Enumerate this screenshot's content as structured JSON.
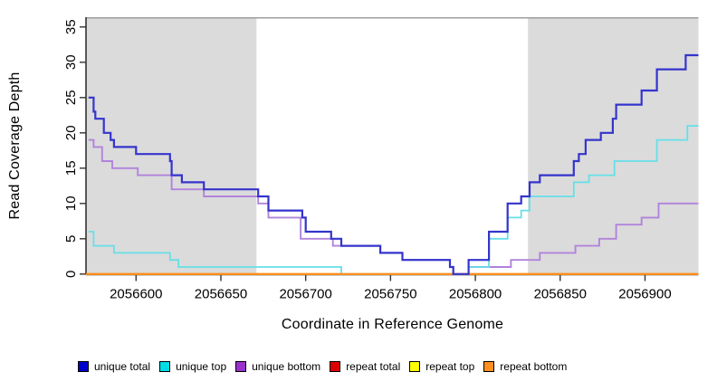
{
  "chart_data": {
    "type": "line",
    "subtype": "step-after",
    "title": "",
    "xlabel": "Coordinate in Reference Genome",
    "ylabel": "Read Coverage Depth",
    "xlim": [
      2056570.5,
      2056931.5
    ],
    "ylim": [
      0,
      36.5
    ],
    "x_ticks": [
      2056600,
      2056650,
      2056700,
      2056750,
      2056800,
      2056850,
      2056900
    ],
    "y_ticks": [
      0,
      5,
      10,
      15,
      20,
      25,
      30,
      35
    ],
    "grid": false,
    "plot_background": "#ffffff",
    "shaded_regions": {
      "color": "#DBDBDB",
      "regions": [
        [
          2056570.5,
          2056671
        ],
        [
          2056831,
          2056931.5
        ]
      ]
    },
    "axis_color": "#333333",
    "top_border_color": "#9E9E9E",
    "legend": {
      "position": "bottom",
      "items": [
        {
          "label": "unique total",
          "swatch": "#0000CC"
        },
        {
          "label": "unique top",
          "swatch": "#00DDE6"
        },
        {
          "label": "unique bottom",
          "swatch": "#9932CC"
        },
        {
          "label": "repeat total",
          "swatch": "#DD0000"
        },
        {
          "label": "repeat top",
          "swatch": "#FFFF00"
        },
        {
          "label": "repeat bottom",
          "swatch": "#FF9020"
        }
      ]
    },
    "series": [
      {
        "name": "unique total",
        "color": "#3434CD",
        "line_width": 2.2,
        "points": [
          [
            2056572,
            25
          ],
          [
            2056575,
            23
          ],
          [
            2056576,
            22
          ],
          [
            2056581,
            20
          ],
          [
            2056585,
            19
          ],
          [
            2056587,
            18
          ],
          [
            2056600,
            17
          ],
          [
            2056620,
            16
          ],
          [
            2056621,
            14
          ],
          [
            2056627,
            13
          ],
          [
            2056640,
            12
          ],
          [
            2056672,
            11
          ],
          [
            2056678,
            9
          ],
          [
            2056698,
            8
          ],
          [
            2056700,
            6
          ],
          [
            2056715,
            5
          ],
          [
            2056721,
            4
          ],
          [
            2056744,
            3
          ],
          [
            2056757,
            2
          ],
          [
            2056785,
            1
          ],
          [
            2056787,
            0
          ],
          [
            2056796,
            2
          ],
          [
            2056808,
            6
          ],
          [
            2056819,
            10
          ],
          [
            2056827,
            11
          ],
          [
            2056832,
            13
          ],
          [
            2056838,
            14
          ],
          [
            2056858,
            16
          ],
          [
            2056861,
            17
          ],
          [
            2056865,
            19
          ],
          [
            2056874,
            20
          ],
          [
            2056881,
            22
          ],
          [
            2056883,
            24
          ],
          [
            2056898,
            26
          ],
          [
            2056907,
            29
          ],
          [
            2056924,
            31
          ]
        ]
      },
      {
        "name": "unique top",
        "color": "#66DFE8",
        "line_width": 1.8,
        "points": [
          [
            2056572,
            6
          ],
          [
            2056575,
            4
          ],
          [
            2056587,
            3
          ],
          [
            2056620,
            2
          ],
          [
            2056625,
            1
          ],
          [
            2056721,
            0
          ],
          [
            2056796,
            1
          ],
          [
            2056808,
            5
          ],
          [
            2056819,
            8
          ],
          [
            2056827,
            9
          ],
          [
            2056832,
            11
          ],
          [
            2056858,
            13
          ],
          [
            2056867,
            14
          ],
          [
            2056882,
            16
          ],
          [
            2056907,
            19
          ],
          [
            2056925,
            21
          ]
        ]
      },
      {
        "name": "unique bottom",
        "color": "#B183DC",
        "line_width": 1.9,
        "points": [
          [
            2056572,
            19
          ],
          [
            2056575,
            18
          ],
          [
            2056580,
            16
          ],
          [
            2056586,
            15
          ],
          [
            2056601,
            14
          ],
          [
            2056621,
            12
          ],
          [
            2056640,
            11
          ],
          [
            2056672,
            10
          ],
          [
            2056678,
            8
          ],
          [
            2056697,
            5
          ],
          [
            2056716,
            4
          ],
          [
            2056744,
            3
          ],
          [
            2056757,
            2
          ],
          [
            2056785,
            1
          ],
          [
            2056787,
            0
          ],
          [
            2056796,
            1
          ],
          [
            2056821,
            2
          ],
          [
            2056838,
            3
          ],
          [
            2056859,
            4
          ],
          [
            2056873,
            5
          ],
          [
            2056883,
            7
          ],
          [
            2056898,
            8
          ],
          [
            2056908,
            10
          ]
        ]
      },
      {
        "name": "repeat total",
        "color": "#DD0000",
        "line_width": 1.8,
        "points": [
          [
            2056570.5,
            0
          ]
        ]
      },
      {
        "name": "repeat top",
        "color": "#FFFF00",
        "line_width": 1.8,
        "points": [
          [
            2056570.5,
            0
          ]
        ]
      },
      {
        "name": "repeat bottom",
        "color": "#FF8C1A",
        "line_width": 2.2,
        "points": [
          [
            2056570.5,
            0
          ]
        ]
      }
    ],
    "draw_order": [
      3,
      4,
      2,
      1,
      5,
      0
    ]
  }
}
